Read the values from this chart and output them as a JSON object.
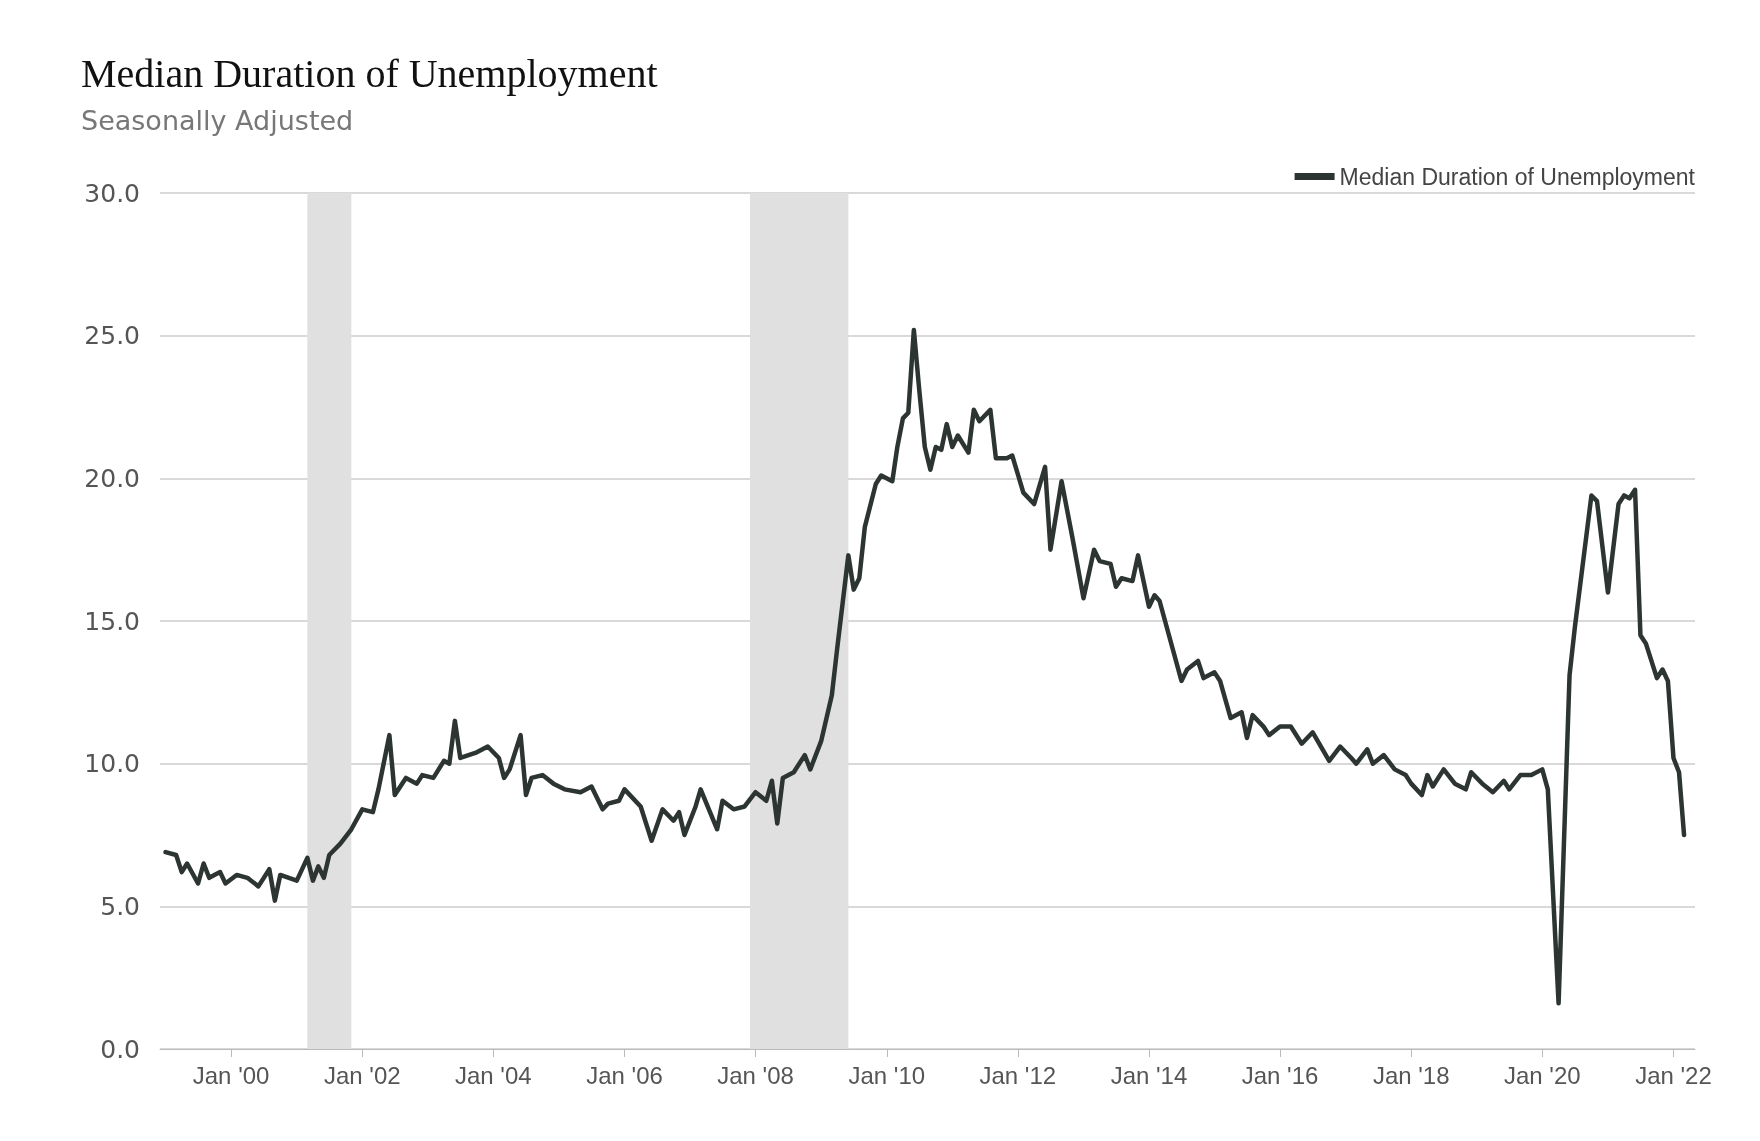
{
  "chart_data": {
    "type": "line",
    "title": "Median Duration of Unemployment",
    "subtitle": "Seasonally Adjusted",
    "x": [
      "1999-01",
      "1999-03",
      "1999-04",
      "1999-05",
      "1999-07",
      "1999-08",
      "1999-09",
      "1999-11",
      "1999-12",
      "2000-02",
      "2000-04",
      "2000-06",
      "2000-08",
      "2000-09",
      "2000-10",
      "2001-01",
      "2001-03",
      "2001-04",
      "2001-05",
      "2001-06",
      "2001-07",
      "2001-09",
      "2001-11",
      "2002-01",
      "2002-03",
      "2002-04",
      "2002-06",
      "2002-07",
      "2002-09",
      "2002-11",
      "2002-12",
      "2003-02",
      "2003-04",
      "2003-05",
      "2003-06",
      "2003-07",
      "2003-10",
      "2003-12",
      "2004-02",
      "2004-03",
      "2004-04",
      "2004-06",
      "2004-07",
      "2004-08",
      "2004-10",
      "2004-12",
      "2005-02",
      "2005-05",
      "2005-07",
      "2005-09",
      "2005-10",
      "2005-12",
      "2006-01",
      "2006-04",
      "2006-06",
      "2006-08",
      "2006-10",
      "2006-11",
      "2006-12",
      "2007-02",
      "2007-03",
      "2007-06",
      "2007-07",
      "2007-09",
      "2007-11",
      "2008-01",
      "2008-03",
      "2008-04",
      "2008-05",
      "2008-06",
      "2008-08",
      "2008-10",
      "2008-11",
      "2009-01",
      "2009-03",
      "2009-04",
      "2009-06",
      "2009-07",
      "2009-08",
      "2009-09",
      "2009-11",
      "2009-12",
      "2010-02",
      "2010-03",
      "2010-04",
      "2010-05",
      "2010-06",
      "2010-07",
      "2010-08",
      "2010-09",
      "2010-10",
      "2010-11",
      "2010-12",
      "2011-01",
      "2011-02",
      "2011-04",
      "2011-05",
      "2011-06",
      "2011-08",
      "2011-09",
      "2011-11",
      "2011-12",
      "2012-02",
      "2012-04",
      "2012-06",
      "2012-07",
      "2012-09",
      "2012-11",
      "2013-01",
      "2013-03",
      "2013-04",
      "2013-06",
      "2013-07",
      "2013-08",
      "2013-10",
      "2013-11",
      "2014-01",
      "2014-02",
      "2014-03",
      "2014-05",
      "2014-07",
      "2014-08",
      "2014-10",
      "2014-11",
      "2015-01",
      "2015-02",
      "2015-04",
      "2015-06",
      "2015-07",
      "2015-08",
      "2015-10",
      "2015-11",
      "2016-01",
      "2016-03",
      "2016-05",
      "2016-07",
      "2016-10",
      "2016-12",
      "2017-02",
      "2017-03",
      "2017-05",
      "2017-06",
      "2017-08",
      "2017-10",
      "2017-12",
      "2018-01",
      "2018-03",
      "2018-04",
      "2018-05",
      "2018-07",
      "2018-09",
      "2018-11",
      "2018-12",
      "2019-02",
      "2019-04",
      "2019-06",
      "2019-07",
      "2019-09",
      "2019-11",
      "2020-01",
      "2020-02",
      "2020-04",
      "2020-06",
      "2020-07",
      "2020-10",
      "2020-11",
      "2021-01",
      "2021-03",
      "2021-04",
      "2021-05",
      "2021-06",
      "2021-07",
      "2021-08",
      "2021-10",
      "2021-11",
      "2021-12",
      "2022-01",
      "2022-02",
      "2022-03"
    ],
    "series": [
      {
        "name": "Median Duration of Unemployment",
        "color": "#2d3532",
        "values": [
          6.9,
          6.8,
          6.2,
          6.5,
          5.8,
          6.5,
          6.0,
          6.2,
          5.8,
          6.1,
          6.0,
          5.7,
          6.3,
          5.2,
          6.1,
          5.9,
          6.7,
          5.9,
          6.4,
          6.0,
          6.8,
          7.2,
          7.7,
          8.4,
          8.3,
          9.1,
          11.0,
          8.9,
          9.5,
          9.3,
          9.6,
          9.5,
          10.1,
          10.0,
          11.5,
          10.2,
          10.4,
          10.6,
          10.2,
          9.5,
          9.8,
          11.0,
          8.9,
          9.5,
          9.6,
          9.3,
          9.1,
          9.0,
          9.2,
          8.4,
          8.6,
          8.7,
          9.1,
          8.5,
          7.3,
          8.4,
          8.0,
          8.3,
          7.5,
          8.5,
          9.1,
          7.7,
          8.7,
          8.4,
          8.5,
          9.0,
          8.7,
          9.4,
          7.9,
          9.5,
          9.7,
          10.3,
          9.8,
          10.8,
          12.4,
          14.1,
          17.3,
          16.1,
          16.5,
          18.3,
          19.8,
          20.1,
          19.9,
          21.1,
          22.1,
          22.3,
          25.2,
          23.1,
          21.1,
          20.3,
          21.1,
          21.0,
          21.9,
          21.1,
          21.5,
          20.9,
          22.4,
          22.0,
          22.4,
          20.7,
          20.7,
          20.8,
          19.5,
          19.1,
          20.4,
          17.5,
          19.9,
          17.9,
          15.8,
          17.5,
          17.1,
          17.0,
          16.2,
          16.5,
          16.4,
          17.3,
          15.5,
          15.9,
          15.7,
          14.3,
          12.9,
          13.3,
          13.6,
          13.0,
          13.2,
          12.9,
          11.6,
          11.8,
          10.9,
          11.7,
          11.3,
          11.0,
          11.3,
          11.3,
          10.7,
          11.1,
          10.1,
          10.6,
          10.2,
          10.0,
          10.5,
          10.0,
          10.3,
          9.8,
          9.6,
          9.3,
          8.9,
          9.6,
          9.2,
          9.8,
          9.3,
          9.1,
          9.7,
          9.3,
          9.0,
          9.4,
          9.1,
          9.6,
          9.6,
          9.8,
          9.1,
          1.6,
          13.1,
          14.8,
          19.4,
          19.2,
          16.0,
          19.1,
          19.4,
          19.3,
          19.6,
          14.5,
          14.2,
          13.0,
          13.3,
          12.9,
          10.2,
          9.7,
          7.5
        ]
      }
    ],
    "xlim": [
      "1998-12",
      "2022-05"
    ],
    "xticks": [
      {
        "value": "2000-01",
        "label": "Jan '00"
      },
      {
        "value": "2002-01",
        "label": "Jan '02"
      },
      {
        "value": "2004-01",
        "label": "Jan '04"
      },
      {
        "value": "2006-01",
        "label": "Jan '06"
      },
      {
        "value": "2008-01",
        "label": "Jan '08"
      },
      {
        "value": "2010-01",
        "label": "Jan '10"
      },
      {
        "value": "2012-01",
        "label": "Jan '12"
      },
      {
        "value": "2014-01",
        "label": "Jan '14"
      },
      {
        "value": "2016-01",
        "label": "Jan '16"
      },
      {
        "value": "2018-01",
        "label": "Jan '18"
      },
      {
        "value": "2020-01",
        "label": "Jan '20"
      },
      {
        "value": "2022-01",
        "label": "Jan '22"
      }
    ],
    "ylim": [
      0,
      30
    ],
    "yticks": [
      {
        "value": 0,
        "label": "0.0"
      },
      {
        "value": 5,
        "label": "5.0"
      },
      {
        "value": 10,
        "label": "10.0"
      },
      {
        "value": 15,
        "label": "15.0"
      },
      {
        "value": 20,
        "label": "20.0"
      },
      {
        "value": 25,
        "label": "25.0"
      },
      {
        "value": 30,
        "label": "30.0"
      }
    ],
    "bands": [
      {
        "axis": "x",
        "from": "2001-03",
        "to": "2001-11",
        "color": "#e0e0e0"
      },
      {
        "axis": "x",
        "from": "2007-12",
        "to": "2009-06",
        "color": "#e0e0e0"
      }
    ],
    "grid": "y",
    "legend": "top right",
    "marker": "none",
    "line_style": "solid"
  }
}
